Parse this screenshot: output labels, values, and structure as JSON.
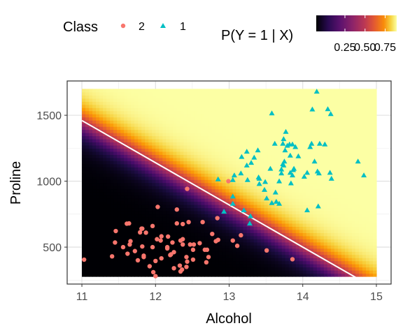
{
  "chart_data": {
    "type": "scatter",
    "xlabel": "Alcohol",
    "ylabel": "Proline",
    "xlim": [
      10.8,
      15.2
    ],
    "ylim": [
      220,
      1760
    ],
    "x_ticks": [
      11,
      12,
      13,
      14,
      15
    ],
    "y_ticks": [
      500,
      1000,
      1500
    ],
    "grid": true,
    "background": {
      "type": "heatmap",
      "x_range": [
        11.0,
        15.0
      ],
      "y_range": [
        278,
        1700
      ],
      "legend_title": "P(Y = 1 | X)",
      "legend_ticks": [
        "0.25",
        "0.50",
        "0.75"
      ],
      "colorscale": [
        "#000004",
        "#1b0c41",
        "#4a0c6b",
        "#781c6d",
        "#a52c60",
        "#cf4446",
        "#ed6925",
        "#fb9b06",
        "#f7d13d",
        "#fcffa4"
      ],
      "decision_boundary": [
        [
          11.0,
          1460
        ],
        [
          14.72,
          270
        ]
      ]
    },
    "legend": {
      "title": "Class",
      "entries": [
        {
          "label": "2",
          "color": "#F8766D",
          "shape": "circle"
        },
        {
          "label": "1",
          "color": "#00BFC4",
          "shape": "triangle"
        }
      ]
    },
    "series": [
      {
        "name": "2",
        "color": "#F8766D",
        "shape": "circle",
        "points": [
          [
            11.03,
            405
          ],
          [
            11.41,
            430
          ],
          [
            11.46,
            622
          ],
          [
            11.56,
            500
          ],
          [
            11.61,
            678
          ],
          [
            11.64,
            680
          ],
          [
            11.66,
            545
          ],
          [
            11.76,
            400
          ],
          [
            11.79,
            612
          ],
          [
            11.82,
            640
          ],
          [
            11.84,
            425
          ],
          [
            11.87,
            610
          ],
          [
            11.62,
            450
          ],
          [
            11.65,
            520
          ],
          [
            11.72,
            470
          ],
          [
            11.96,
            660
          ],
          [
            11.96,
            500
          ],
          [
            11.92,
            355
          ],
          [
            11.97,
            310
          ],
          [
            12.0,
            280
          ],
          [
            12.02,
            560
          ],
          [
            12.08,
            415
          ],
          [
            12.08,
            582
          ],
          [
            12.16,
            500
          ],
          [
            12.17,
            580
          ],
          [
            12.2,
            440
          ],
          [
            12.21,
            445
          ],
          [
            12.25,
            462
          ],
          [
            12.29,
            680
          ],
          [
            12.33,
            360
          ],
          [
            12.34,
            550
          ],
          [
            12.36,
            330
          ],
          [
            12.37,
            520
          ],
          [
            12.37,
            675
          ],
          [
            12.42,
            425
          ],
          [
            12.43,
            390
          ],
          [
            12.45,
            690
          ],
          [
            12.52,
            520
          ],
          [
            12.51,
            405
          ],
          [
            12.6,
            530
          ],
          [
            12.64,
            690
          ],
          [
            12.67,
            480
          ],
          [
            12.69,
            385
          ],
          [
            12.7,
            480
          ],
          [
            12.72,
            425
          ],
          [
            12.77,
            600
          ],
          [
            12.82,
            545
          ],
          [
            12.85,
            555
          ],
          [
            12.43,
            942
          ],
          [
            12.29,
            785
          ],
          [
            12.03,
            805
          ],
          [
            11.81,
            640
          ],
          [
            11.82,
            505
          ],
          [
            11.45,
            535
          ],
          [
            12.07,
            550
          ],
          [
            12.25,
            340
          ],
          [
            12.34,
            315
          ],
          [
            12.47,
            520
          ],
          [
            12.23,
            535
          ],
          [
            12.0,
            395
          ],
          [
            11.84,
            435
          ],
          [
            12.16,
            490
          ],
          [
            12.84,
            720
          ],
          [
            12.99,
            1000
          ],
          [
            13.05,
            550
          ],
          [
            13.11,
            510
          ],
          [
            13.16,
            590
          ],
          [
            13.51,
            475
          ],
          [
            13.86,
            408
          ],
          [
            12.42,
            350
          ],
          [
            12.51,
            480
          ],
          [
            12.37,
            560
          ]
        ]
      },
      {
        "name": "1",
        "color": "#00BFC4",
        "shape": "triangle",
        "points": [
          [
            12.85,
            1015
          ],
          [
            12.93,
            770
          ],
          [
            13.05,
            830
          ],
          [
            13.05,
            1010
          ],
          [
            13.05,
            885
          ],
          [
            13.07,
            1045
          ],
          [
            13.16,
            1060
          ],
          [
            13.2,
            780
          ],
          [
            13.24,
            1120
          ],
          [
            13.28,
            680
          ],
          [
            13.29,
            735
          ],
          [
            13.3,
            1140
          ],
          [
            13.34,
            1180
          ],
          [
            13.39,
            1235
          ],
          [
            13.41,
            1020
          ],
          [
            13.48,
            935
          ],
          [
            13.49,
            995
          ],
          [
            13.51,
            870
          ],
          [
            13.56,
            1095
          ],
          [
            13.58,
            1515
          ],
          [
            13.62,
            1285
          ],
          [
            13.63,
            915
          ],
          [
            13.64,
            845
          ],
          [
            13.68,
            830
          ],
          [
            13.71,
            1060
          ],
          [
            13.73,
            1285
          ],
          [
            13.74,
            1320
          ],
          [
            13.75,
            1150
          ],
          [
            13.76,
            1235
          ],
          [
            13.77,
            1375
          ],
          [
            13.79,
            1270
          ],
          [
            13.82,
            1280
          ],
          [
            13.83,
            1065
          ],
          [
            13.83,
            1195
          ],
          [
            13.84,
            985
          ],
          [
            13.86,
            1045
          ],
          [
            13.87,
            1085
          ],
          [
            13.88,
            1095
          ],
          [
            13.9,
            1260
          ],
          [
            13.94,
            1190
          ],
          [
            14.02,
            1035
          ],
          [
            14.06,
            1065
          ],
          [
            14.1,
            1260
          ],
          [
            14.12,
            1285
          ],
          [
            14.13,
            1545
          ],
          [
            14.16,
            1150
          ],
          [
            14.19,
            1680
          ],
          [
            14.2,
            1075
          ],
          [
            14.22,
            1060
          ],
          [
            14.23,
            1285
          ],
          [
            14.3,
            1280
          ],
          [
            14.34,
            1547
          ],
          [
            14.37,
            1065
          ],
          [
            14.38,
            1510
          ],
          [
            14.39,
            1020
          ],
          [
            14.21,
            810
          ],
          [
            14.06,
            780
          ],
          [
            14.75,
            1150
          ],
          [
            14.83,
            1045
          ],
          [
            13.58,
            835
          ],
          [
            13.4,
            1030
          ],
          [
            13.86,
            1280
          ],
          [
            13.71,
            1090
          ],
          [
            13.17,
            1185
          ],
          [
            13.25,
            1010
          ],
          [
            13.41,
            980
          ],
          [
            13.74,
            1120
          ],
          [
            13.24,
            1225
          ],
          [
            13.68,
            1000
          ],
          [
            13.73,
            1130
          ]
        ]
      }
    ]
  }
}
